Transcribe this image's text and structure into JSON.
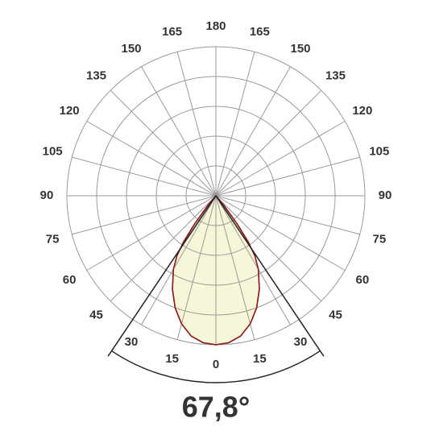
{
  "chart_data": {
    "type": "polar",
    "angle_ticks": [
      0,
      15,
      30,
      45,
      60,
      75,
      90,
      105,
      120,
      135,
      150,
      165,
      180
    ],
    "rlim": [
      0,
      5
    ],
    "rticks": [
      1,
      2,
      3,
      4,
      5
    ],
    "grid": true,
    "series": [
      {
        "color": "#8b1a1a",
        "angles": [
          -45,
          -40,
          -37,
          -35,
          -33,
          -30,
          -25,
          -20,
          -15,
          -10,
          -5,
          0,
          5,
          10,
          15,
          20,
          25,
          30,
          33,
          35,
          37,
          40,
          45
        ],
        "values": [
          0,
          0.4,
          1.2,
          1.9,
          2.4,
          2.85,
          3.45,
          4.0,
          4.45,
          4.78,
          4.95,
          5.0,
          4.95,
          4.78,
          4.45,
          4.0,
          3.45,
          2.85,
          2.4,
          1.9,
          1.2,
          0.4,
          0
        ]
      }
    ],
    "fill": "#f7f6d8",
    "beam_angle": 67.8,
    "beam_angle_label": "67,8°"
  }
}
